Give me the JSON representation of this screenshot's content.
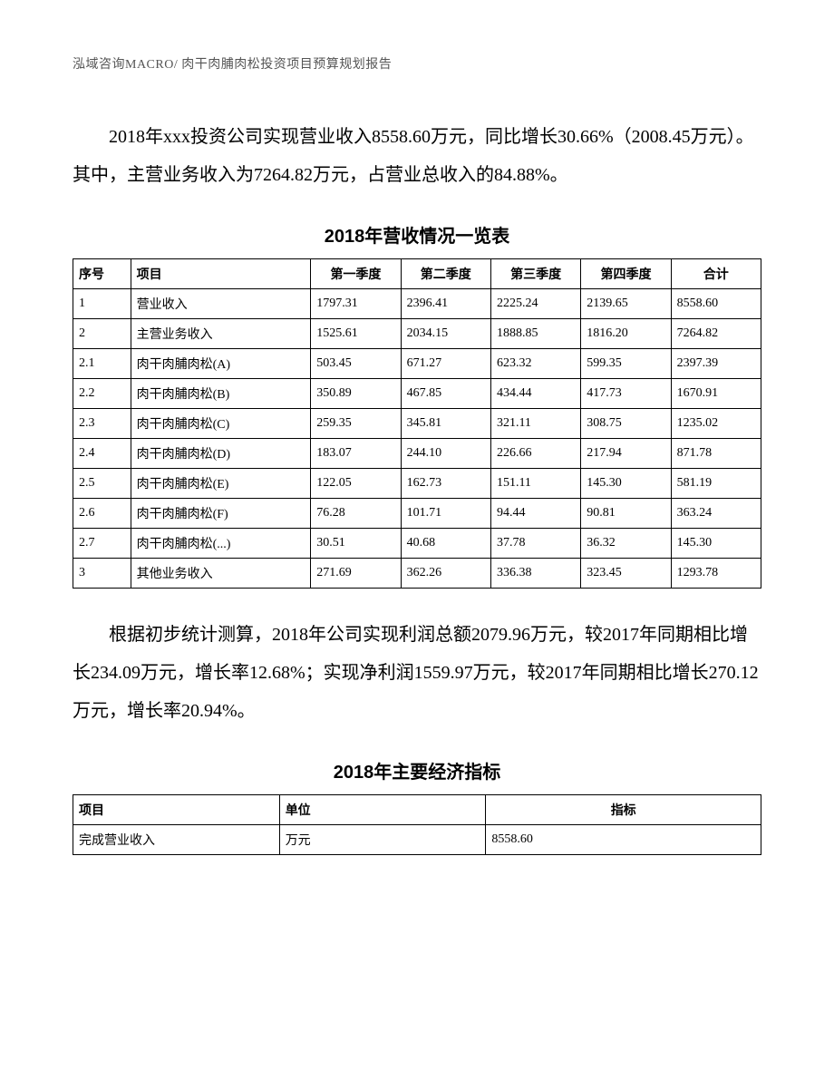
{
  "header": "泓域咨询MACRO/    肉干肉脯肉松投资项目预算规划报告",
  "para1": "2018年xxx投资公司实现营业收入8558.60万元，同比增长30.66%（2008.45万元）。其中，主营业务收入为7264.82万元，占营业总收入的84.88%。",
  "table1": {
    "title": "2018年营收情况一览表",
    "headers": [
      "序号",
      "项目",
      "第一季度",
      "第二季度",
      "第三季度",
      "第四季度",
      "合计"
    ],
    "rows": [
      [
        "1",
        "营业收入",
        "1797.31",
        "2396.41",
        "2225.24",
        "2139.65",
        "8558.60"
      ],
      [
        "2",
        "主营业务收入",
        "1525.61",
        "2034.15",
        "1888.85",
        "1816.20",
        "7264.82"
      ],
      [
        "2.1",
        "肉干肉脯肉松(A)",
        "503.45",
        "671.27",
        "623.32",
        "599.35",
        "2397.39"
      ],
      [
        "2.2",
        "肉干肉脯肉松(B)",
        "350.89",
        "467.85",
        "434.44",
        "417.73",
        "1670.91"
      ],
      [
        "2.3",
        "肉干肉脯肉松(C)",
        "259.35",
        "345.81",
        "321.11",
        "308.75",
        "1235.02"
      ],
      [
        "2.4",
        "肉干肉脯肉松(D)",
        "183.07",
        "244.10",
        "226.66",
        "217.94",
        "871.78"
      ],
      [
        "2.5",
        "肉干肉脯肉松(E)",
        "122.05",
        "162.73",
        "151.11",
        "145.30",
        "581.19"
      ],
      [
        "2.6",
        "肉干肉脯肉松(F)",
        "76.28",
        "101.71",
        "94.44",
        "90.81",
        "363.24"
      ],
      [
        "2.7",
        "肉干肉脯肉松(...)",
        "30.51",
        "40.68",
        "37.78",
        "36.32",
        "145.30"
      ],
      [
        "3",
        "其他业务收入",
        "271.69",
        "362.26",
        "336.38",
        "323.45",
        "1293.78"
      ]
    ]
  },
  "para2": "根据初步统计测算，2018年公司实现利润总额2079.96万元，较2017年同期相比增长234.09万元，增长率12.68%；实现净利润1559.97万元，较2017年同期相比增长270.12万元，增长率20.94%。",
  "table2": {
    "title": "2018年主要经济指标",
    "headers": [
      "项目",
      "单位",
      "指标"
    ],
    "rows": [
      [
        "完成营业收入",
        "万元",
        "8558.60"
      ]
    ]
  }
}
